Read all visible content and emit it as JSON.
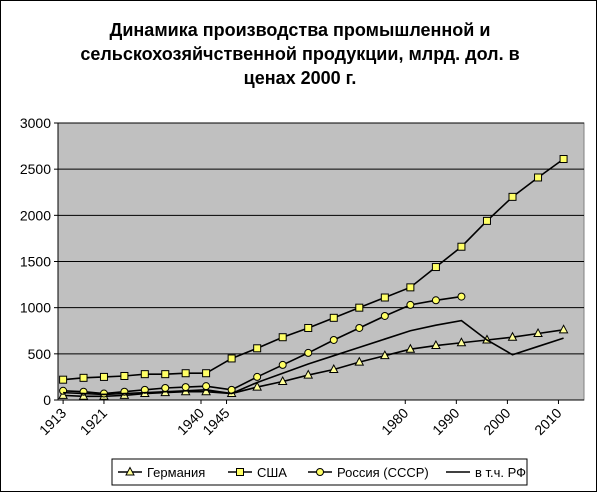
{
  "chart_data": {
    "type": "line",
    "title_lines": [
      "Динамика производства промышленной и",
      "сельскохозяйчственной продукции, млрд. дол. в",
      "ценах 2000 г."
    ],
    "xlabel": "",
    "ylabel": "",
    "ylim": [
      0,
      3000
    ],
    "y_ticks": [
      0,
      500,
      1000,
      1500,
      2000,
      2500,
      3000
    ],
    "xlim": [
      1912,
      2015
    ],
    "x_tick_labels": [
      {
        "year": 1913,
        "label": "1913"
      },
      {
        "year": 1921,
        "label": "1921"
      },
      {
        "year": 1940,
        "label": "1940"
      },
      {
        "year": 1945,
        "label": "1945"
      },
      {
        "year": 1980,
        "label": "1980"
      },
      {
        "year": 1990,
        "label": "1990"
      },
      {
        "year": 2000,
        "label": "2000"
      },
      {
        "year": 2010,
        "label": "2010"
      }
    ],
    "grid": "horizontal",
    "plot_background": "#c0c0c0",
    "legend_position": "bottom",
    "series": [
      {
        "name": "Германия",
        "marker": "triangle",
        "color": "#000000",
        "marker_fill": "#ffff99",
        "x": [
          1913,
          1917,
          1921,
          1925,
          1929,
          1933,
          1937,
          1941,
          1946,
          1951,
          1956,
          1961,
          1966,
          1971,
          1976,
          1981,
          1986,
          1991,
          1996,
          2001,
          2006,
          2011
        ],
        "values": [
          50,
          40,
          40,
          50,
          70,
          80,
          90,
          90,
          70,
          140,
          200,
          270,
          330,
          410,
          480,
          550,
          590,
          620,
          650,
          680,
          720,
          760
        ]
      },
      {
        "name": "США",
        "marker": "square",
        "color": "#000000",
        "marker_fill": "#ffff66",
        "x": [
          1913,
          1917,
          1921,
          1925,
          1929,
          1933,
          1937,
          1941,
          1946,
          1951,
          1956,
          1961,
          1966,
          1971,
          1976,
          1981,
          1986,
          1991,
          1996,
          2001,
          2006,
          2011
        ],
        "values": [
          220,
          240,
          250,
          260,
          280,
          280,
          290,
          290,
          450,
          560,
          680,
          780,
          890,
          1000,
          1110,
          1220,
          1440,
          1660,
          1940,
          2200,
          2410,
          2610
        ]
      },
      {
        "name": "Россия (СССР)",
        "marker": "circle",
        "color": "#000000",
        "marker_fill": "#ffff66",
        "x": [
          1913,
          1917,
          1921,
          1925,
          1929,
          1933,
          1937,
          1941,
          1946,
          1951,
          1956,
          1961,
          1966,
          1971,
          1976,
          1981,
          1986,
          1991
        ],
        "values": [
          100,
          90,
          70,
          90,
          110,
          130,
          140,
          150,
          110,
          250,
          380,
          510,
          650,
          780,
          910,
          1030,
          1080,
          1120
        ]
      },
      {
        "name": "в т.ч. РФ",
        "marker": "none",
        "color": "#000000",
        "x": [
          1913,
          1921,
          1929,
          1937,
          1941,
          1946,
          1951,
          1956,
          1961,
          1966,
          1971,
          1976,
          1981,
          1986,
          1991,
          1996,
          2001,
          2006,
          2011
        ],
        "values": [
          80,
          60,
          80,
          100,
          110,
          70,
          190,
          290,
          390,
          480,
          570,
          660,
          750,
          810,
          860,
          650,
          490,
          580,
          670
        ]
      }
    ]
  }
}
